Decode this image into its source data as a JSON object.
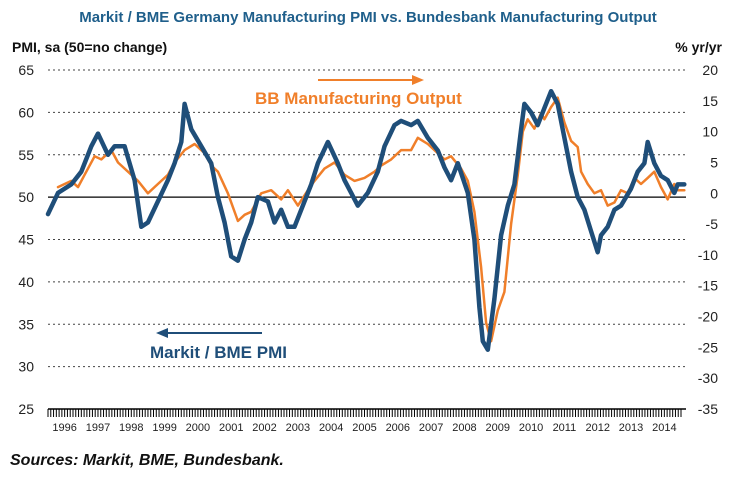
{
  "chart_data": {
    "type": "line",
    "title": "Markit / BME Germany Manufacturing PMI vs. Bundesbank Manufacturing Output",
    "ylabel_left": "PMI, sa (50=no change)",
    "ylabel_right": "% yr/yr",
    "x_categories": [
      "1996",
      "1997",
      "1998",
      "1999",
      "2000",
      "2001",
      "2002",
      "2003",
      "2004",
      "2005",
      "2006",
      "2007",
      "2008",
      "2009",
      "2010",
      "2011",
      "2012",
      "2013",
      "2014"
    ],
    "ylim_left": [
      25,
      65
    ],
    "ylim_right": [
      -35,
      20
    ],
    "yticks_left": [
      25,
      30,
      35,
      40,
      45,
      50,
      55,
      60,
      65
    ],
    "yticks_right": [
      -35,
      -30,
      -25,
      -20,
      -15,
      -10,
      -5,
      0,
      5,
      10,
      15,
      20
    ],
    "grid": "horizontal dashed",
    "reference_line": 50,
    "annotations": {
      "output_label": "BB Manufacturing Output",
      "pmi_label": "Markit / BME PMI"
    },
    "source": "Sources: Markit, BME, Bundesbank.",
    "colors": {
      "pmi": "#1f4e79",
      "output": "#f07f2a",
      "title": "#1f5f8b"
    },
    "series": [
      {
        "name": "Markit / BME PMI",
        "axis": "left",
        "points": [
          [
            1996.0,
            48.0
          ],
          [
            1996.3,
            50.5
          ],
          [
            1996.7,
            51.5
          ],
          [
            1997.0,
            53.0
          ],
          [
            1997.3,
            56.0
          ],
          [
            1997.5,
            57.5
          ],
          [
            1997.8,
            55.0
          ],
          [
            1998.0,
            56.0
          ],
          [
            1998.3,
            56.0
          ],
          [
            1998.6,
            52.0
          ],
          [
            1998.8,
            46.5
          ],
          [
            1999.0,
            47.0
          ],
          [
            1999.3,
            49.5
          ],
          [
            1999.6,
            52.0
          ],
          [
            1999.8,
            54.0
          ],
          [
            2000.0,
            56.5
          ],
          [
            2000.1,
            61.0
          ],
          [
            2000.3,
            58.0
          ],
          [
            2000.6,
            56.0
          ],
          [
            2000.9,
            54.0
          ],
          [
            2001.1,
            50.0
          ],
          [
            2001.3,
            47.0
          ],
          [
            2001.5,
            43.0
          ],
          [
            2001.7,
            42.5
          ],
          [
            2001.9,
            45.0
          ],
          [
            2002.1,
            47.0
          ],
          [
            2002.3,
            50.0
          ],
          [
            2002.6,
            49.5
          ],
          [
            2002.8,
            47.0
          ],
          [
            2003.0,
            48.5
          ],
          [
            2003.2,
            46.5
          ],
          [
            2003.4,
            46.5
          ],
          [
            2003.7,
            49.5
          ],
          [
            2003.9,
            51.5
          ],
          [
            2004.1,
            54.0
          ],
          [
            2004.4,
            56.5
          ],
          [
            2004.7,
            54.0
          ],
          [
            2004.9,
            52.0
          ],
          [
            2005.1,
            50.5
          ],
          [
            2005.3,
            49.0
          ],
          [
            2005.6,
            50.5
          ],
          [
            2005.9,
            53.0
          ],
          [
            2006.1,
            56.0
          ],
          [
            2006.4,
            58.5
          ],
          [
            2006.6,
            59.0
          ],
          [
            2006.9,
            58.5
          ],
          [
            2007.1,
            59.0
          ],
          [
            2007.4,
            57.0
          ],
          [
            2007.7,
            55.5
          ],
          [
            2007.9,
            53.5
          ],
          [
            2008.1,
            52.0
          ],
          [
            2008.3,
            54.0
          ],
          [
            2008.6,
            50.5
          ],
          [
            2008.8,
            45.0
          ],
          [
            2008.95,
            37.0
          ],
          [
            2009.05,
            33.0
          ],
          [
            2009.2,
            32.0
          ],
          [
            2009.4,
            38.0
          ],
          [
            2009.6,
            45.5
          ],
          [
            2009.8,
            49.0
          ],
          [
            2010.0,
            51.5
          ],
          [
            2010.2,
            58.0
          ],
          [
            2010.3,
            61.0
          ],
          [
            2010.5,
            60.0
          ],
          [
            2010.7,
            58.5
          ],
          [
            2010.9,
            60.5
          ],
          [
            2011.1,
            62.5
          ],
          [
            2011.3,
            61.0
          ],
          [
            2011.5,
            57.0
          ],
          [
            2011.7,
            53.0
          ],
          [
            2011.9,
            50.0
          ],
          [
            2012.1,
            48.5
          ],
          [
            2012.3,
            46.0
          ],
          [
            2012.5,
            43.5
          ],
          [
            2012.6,
            45.5
          ],
          [
            2012.8,
            46.5
          ],
          [
            2013.0,
            48.5
          ],
          [
            2013.2,
            49.0
          ],
          [
            2013.5,
            51.0
          ],
          [
            2013.7,
            53.0
          ],
          [
            2013.9,
            54.0
          ],
          [
            2014.0,
            56.5
          ],
          [
            2014.2,
            54.0
          ],
          [
            2014.4,
            52.5
          ],
          [
            2014.6,
            52.0
          ],
          [
            2014.8,
            50.5
          ],
          [
            2014.9,
            51.5
          ],
          [
            2015.1,
            51.5
          ]
        ]
      },
      {
        "name": "BB Manufacturing Output",
        "axis": "right",
        "points": [
          [
            1996.3,
            1.0
          ],
          [
            1996.7,
            2.0
          ],
          [
            1996.9,
            1.0
          ],
          [
            1997.1,
            3.0
          ],
          [
            1997.4,
            6.0
          ],
          [
            1997.6,
            5.5
          ],
          [
            1997.9,
            7.0
          ],
          [
            1998.1,
            5.0
          ],
          [
            1998.4,
            3.5
          ],
          [
            1998.7,
            2.0
          ],
          [
            1999.0,
            0.0
          ],
          [
            1999.3,
            1.5
          ],
          [
            1999.6,
            3.0
          ],
          [
            1999.8,
            5.0
          ],
          [
            2000.1,
            7.0
          ],
          [
            2000.4,
            8.0
          ],
          [
            2000.7,
            6.5
          ],
          [
            2000.9,
            4.5
          ],
          [
            2001.1,
            3.5
          ],
          [
            2001.4,
            0.0
          ],
          [
            2001.7,
            -4.5
          ],
          [
            2001.9,
            -3.5
          ],
          [
            2002.1,
            -3.0
          ],
          [
            2002.4,
            0.0
          ],
          [
            2002.7,
            0.5
          ],
          [
            2003.0,
            -1.0
          ],
          [
            2003.2,
            0.5
          ],
          [
            2003.5,
            -2.0
          ],
          [
            2003.8,
            0.5
          ],
          [
            2004.0,
            2.0
          ],
          [
            2004.3,
            4.0
          ],
          [
            2004.6,
            5.0
          ],
          [
            2004.9,
            3.0
          ],
          [
            2005.2,
            2.0
          ],
          [
            2005.5,
            2.5
          ],
          [
            2005.8,
            3.5
          ],
          [
            2006.0,
            4.5
          ],
          [
            2006.3,
            5.5
          ],
          [
            2006.6,
            7.0
          ],
          [
            2006.9,
            7.0
          ],
          [
            2007.1,
            9.0
          ],
          [
            2007.4,
            8.0
          ],
          [
            2007.7,
            6.5
          ],
          [
            2007.9,
            5.5
          ],
          [
            2008.1,
            6.0
          ],
          [
            2008.4,
            4.0
          ],
          [
            2008.6,
            2.0
          ],
          [
            2008.8,
            -3.0
          ],
          [
            2009.0,
            -12.0
          ],
          [
            2009.15,
            -21.0
          ],
          [
            2009.3,
            -24.0
          ],
          [
            2009.5,
            -19.0
          ],
          [
            2009.7,
            -16.0
          ],
          [
            2009.9,
            -5.0
          ],
          [
            2010.1,
            3.0
          ],
          [
            2010.25,
            10.0
          ],
          [
            2010.4,
            12.0
          ],
          [
            2010.6,
            10.5
          ],
          [
            2010.8,
            13.0
          ],
          [
            2010.9,
            12.0
          ],
          [
            2011.1,
            14.0
          ],
          [
            2011.3,
            15.5
          ],
          [
            2011.5,
            11.5
          ],
          [
            2011.7,
            8.5
          ],
          [
            2011.9,
            7.5
          ],
          [
            2012.0,
            3.5
          ],
          [
            2012.2,
            1.5
          ],
          [
            2012.4,
            0.0
          ],
          [
            2012.6,
            0.5
          ],
          [
            2012.8,
            -2.0
          ],
          [
            2013.0,
            -1.5
          ],
          [
            2013.2,
            0.5
          ],
          [
            2013.4,
            0.0
          ],
          [
            2013.6,
            2.5
          ],
          [
            2013.8,
            1.5
          ],
          [
            2014.0,
            2.5
          ],
          [
            2014.2,
            3.5
          ],
          [
            2014.4,
            1.0
          ],
          [
            2014.6,
            -1.0
          ],
          [
            2014.8,
            1.5
          ],
          [
            2014.9,
            0.5
          ],
          [
            2015.1,
            0.5
          ]
        ]
      }
    ]
  }
}
